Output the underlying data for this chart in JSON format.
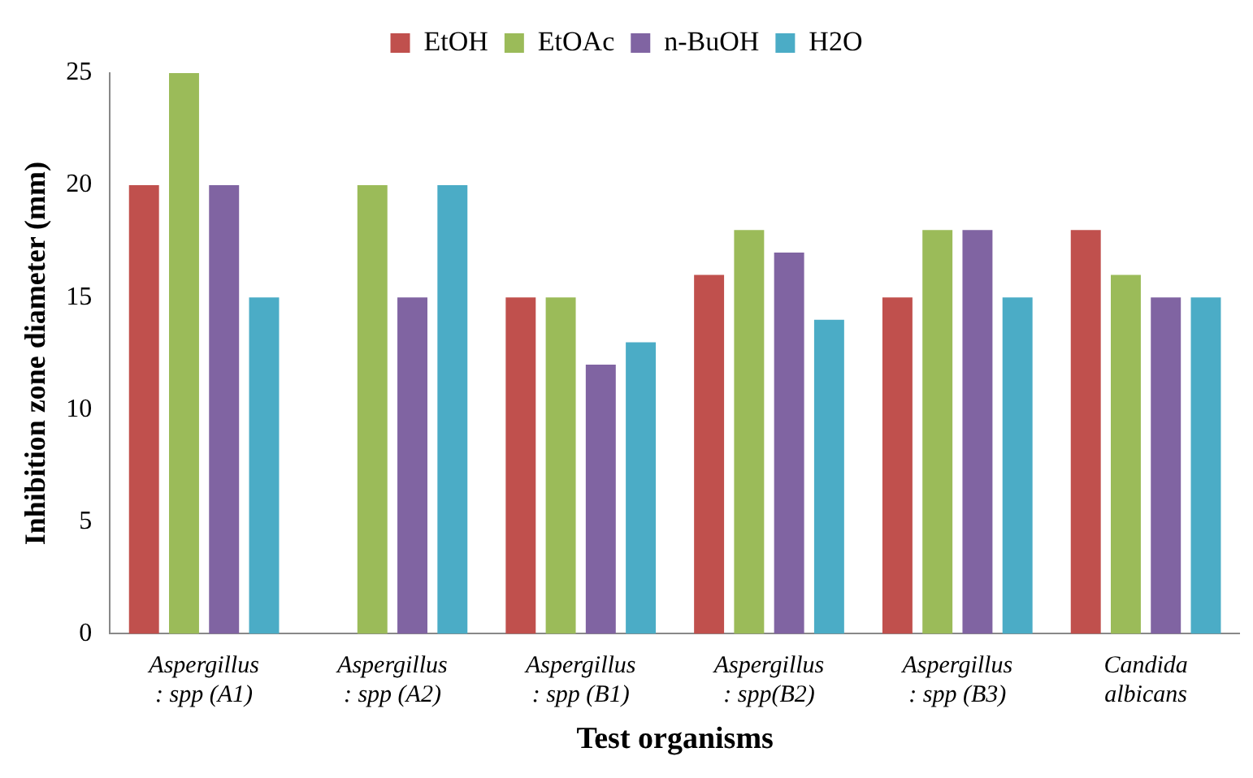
{
  "chart_data": {
    "type": "bar",
    "xlabel": "Test organisms",
    "ylabel": "Inhibition zone diameter (mm)",
    "categories": [
      "Aspergillus : spp (A1)",
      "Aspergillus : spp (A2)",
      "Aspergillus : spp (B1)",
      "Aspergillus : spp(B2)",
      "Aspergillus : spp (B3)",
      "Candida albicans"
    ],
    "series": [
      {
        "name": "EtOH",
        "color": "#c0504d",
        "values": [
          20,
          0,
          15,
          16,
          15,
          18
        ]
      },
      {
        "name": "EtOAc",
        "color": "#9bbb59",
        "values": [
          25,
          20,
          15,
          18,
          18,
          16
        ]
      },
      {
        "name": "n-BuOH",
        "color": "#8064a2",
        "values": [
          20,
          15,
          12,
          17,
          18,
          15
        ]
      },
      {
        "name": "H2O",
        "color": "#4bacc6",
        "values": [
          15,
          20,
          13,
          14,
          15,
          15
        ]
      }
    ],
    "ylim": [
      0,
      25
    ],
    "yticks": [
      0,
      5,
      10,
      15,
      20,
      25
    ],
    "grid": false,
    "legend": "top"
  }
}
